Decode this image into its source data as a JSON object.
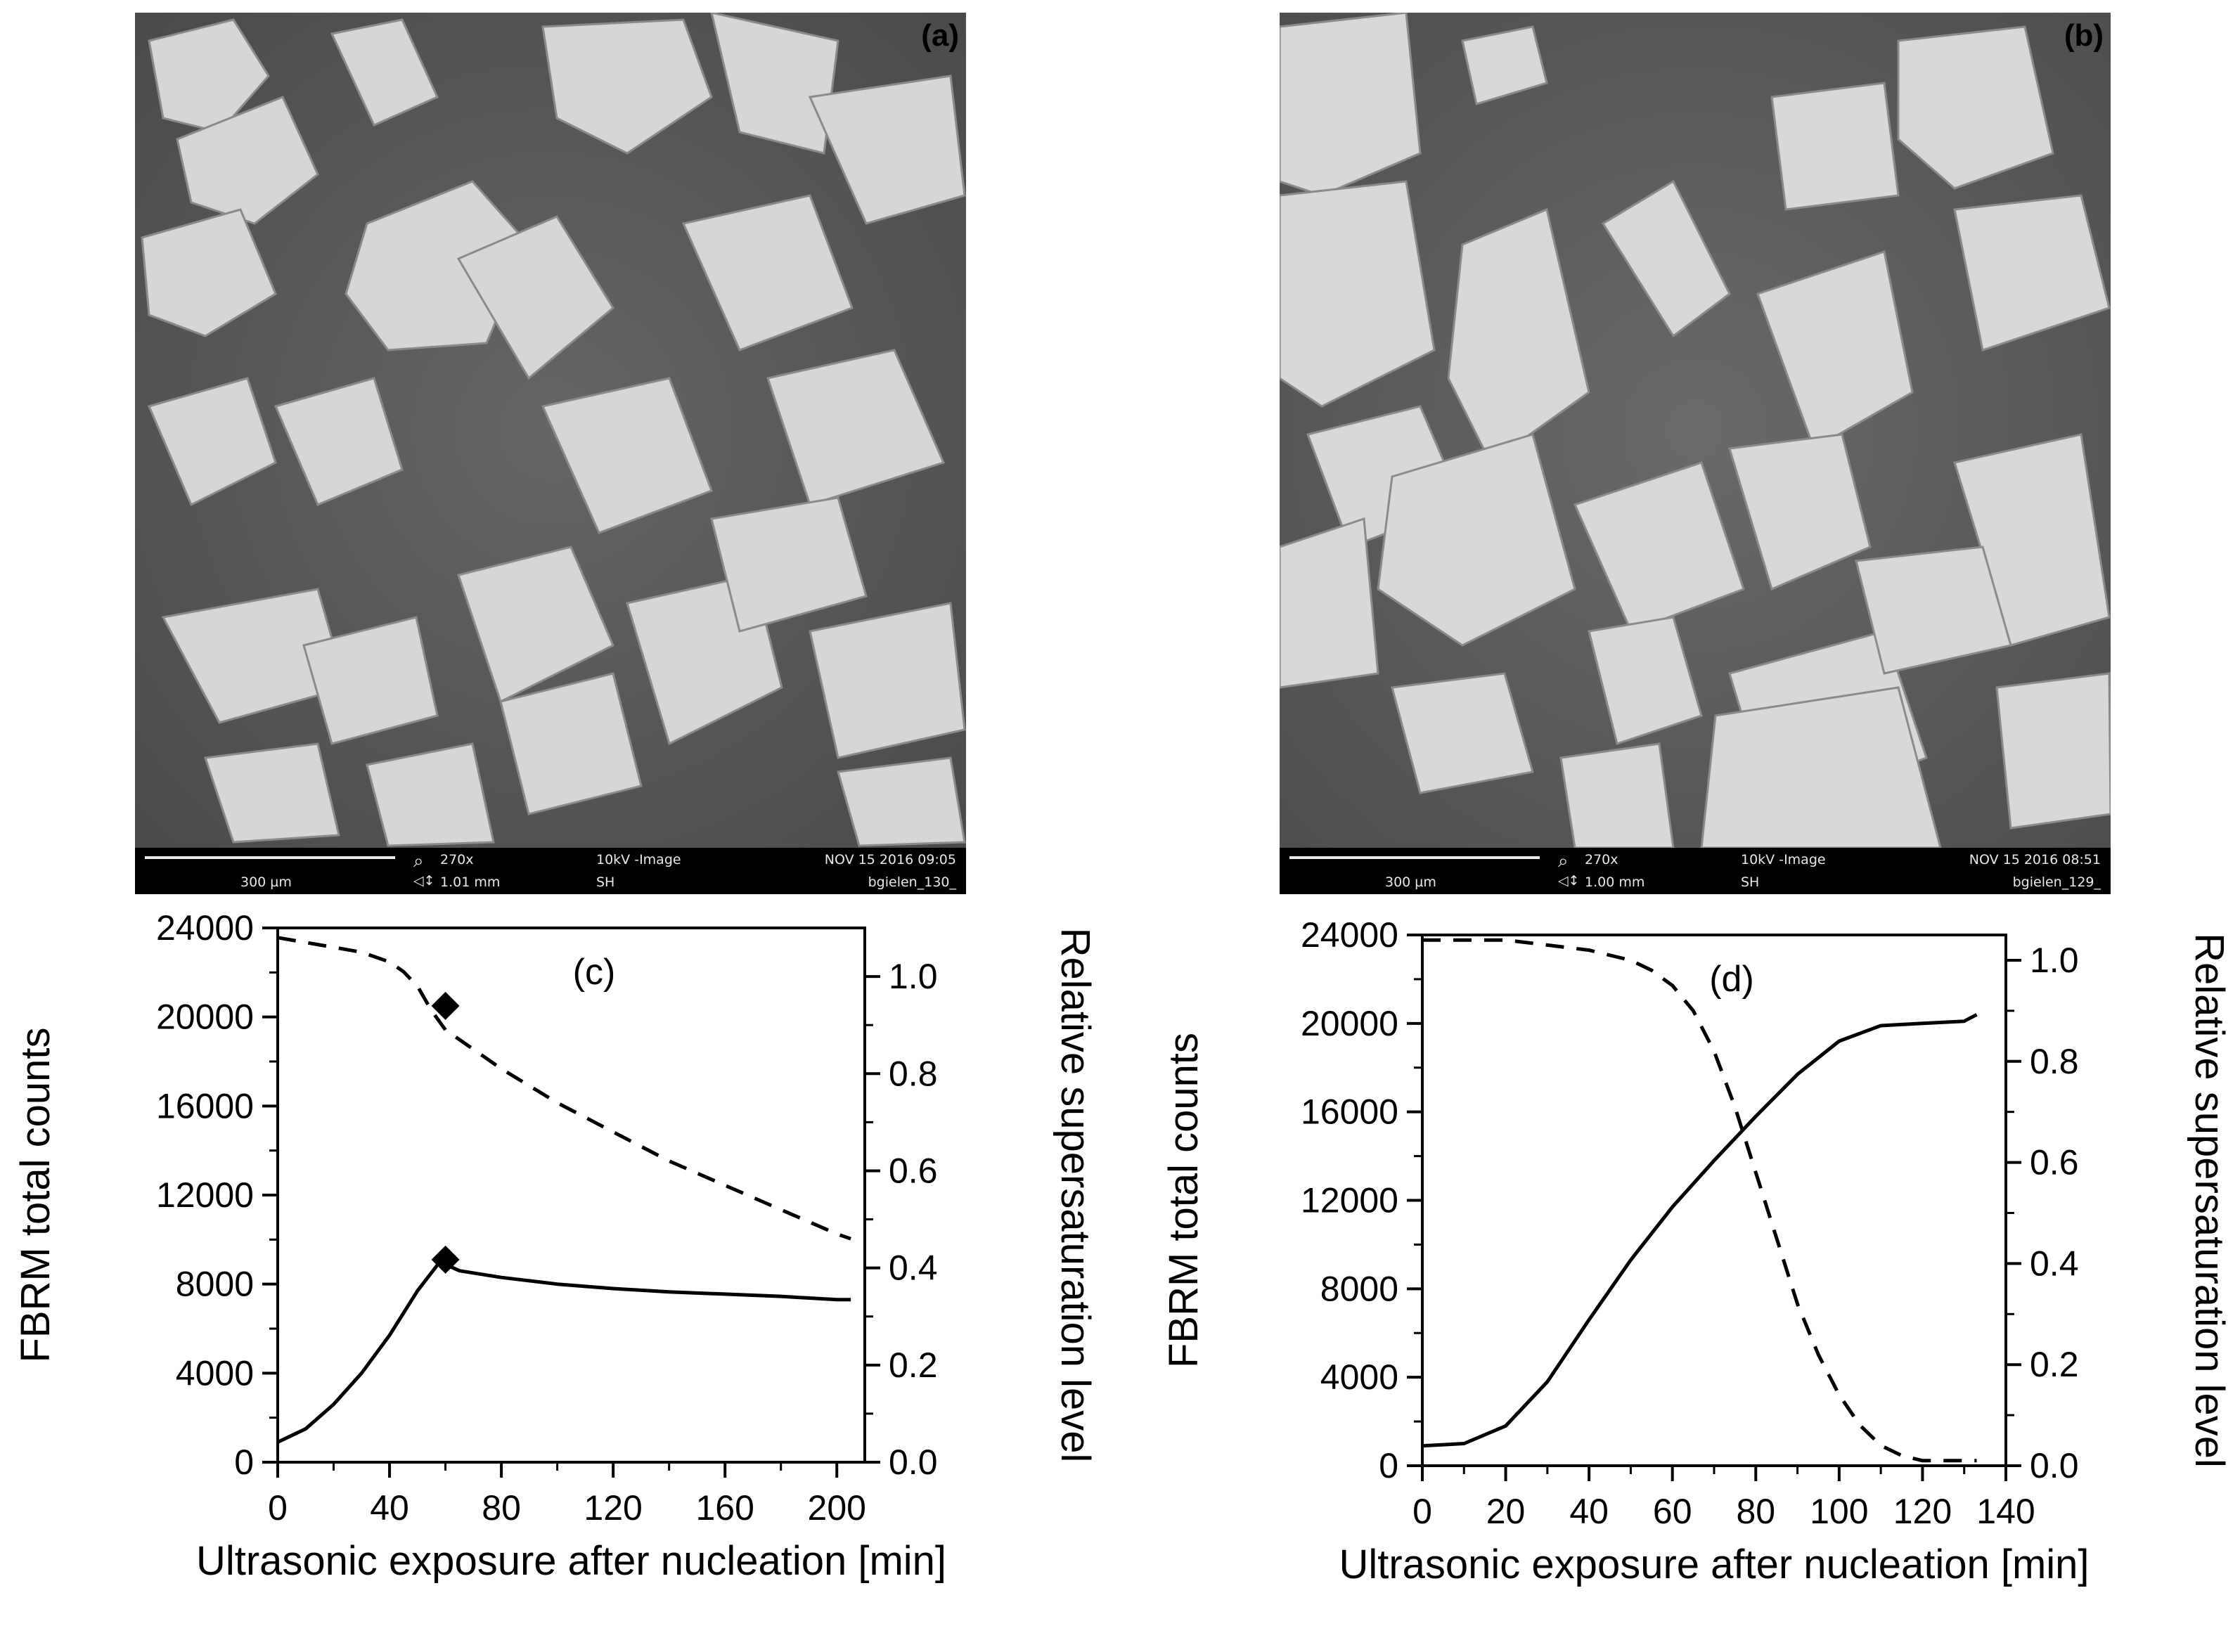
{
  "sem": [
    {
      "label": "(a)",
      "scale_text": "300 µm",
      "magnification": "270x",
      "field_width": "1.01 mm",
      "voltage": "10kV -Image",
      "detector": "SH",
      "datetime": "NOV 15 2016 09:05",
      "filename": "bgielen_130_"
    },
    {
      "label": "(b)",
      "scale_text": "300 µm",
      "magnification": "270x",
      "field_width": "1.00 mm",
      "voltage": "10kV -Image",
      "detector": "SH",
      "datetime": "NOV 15 2016 08:51",
      "filename": "bgielen_129_"
    }
  ],
  "colors": {
    "sem_background": "#5a5a5a",
    "crystal": "#d4d4d4",
    "info_bar": "#000000",
    "line": "#000000"
  },
  "chart_data": [
    {
      "type": "line",
      "panel_label": "(c)",
      "xlabel": "Ultrasonic exposure after nucleation [min]",
      "ylabel": "FBRM total counts",
      "y2label": "Relative supersaturation level",
      "xlim": [
        0,
        210
      ],
      "ylim": [
        0,
        24000
      ],
      "y2lim": [
        0,
        1.1
      ],
      "xticks": [
        "0",
        "40",
        "80",
        "120",
        "160",
        "200"
      ],
      "yticks": [
        "0",
        "4000",
        "8000",
        "12000",
        "16000",
        "20000",
        "24000"
      ],
      "y2ticks": [
        "0.0",
        "0.2",
        "0.4",
        "0.6",
        "0.8",
        "1.0"
      ],
      "series": [
        {
          "style": "solid",
          "axis": "left",
          "x": [
            0,
            10,
            20,
            30,
            40,
            50,
            58,
            65,
            80,
            100,
            120,
            140,
            160,
            180,
            200,
            205
          ],
          "y": [
            900,
            1500,
            2600,
            4000,
            5700,
            7700,
            9000,
            8600,
            8300,
            8000,
            7800,
            7650,
            7550,
            7450,
            7300,
            7300
          ]
        },
        {
          "style": "dashed",
          "axis": "right",
          "x": [
            0,
            10,
            20,
            30,
            40,
            45,
            50,
            55,
            60,
            70,
            80,
            100,
            120,
            140,
            160,
            180,
            200,
            205
          ],
          "y": [
            1.08,
            1.07,
            1.06,
            1.05,
            1.03,
            1.01,
            0.98,
            0.93,
            0.89,
            0.85,
            0.81,
            0.74,
            0.68,
            0.62,
            0.57,
            0.52,
            0.47,
            0.46
          ]
        }
      ],
      "markers": [
        {
          "x": 60,
          "y": 20500,
          "shape": "diamond"
        },
        {
          "x": 60,
          "y": 9100,
          "shape": "diamond"
        }
      ]
    },
    {
      "type": "line",
      "panel_label": "(d)",
      "xlabel": "Ultrasonic exposure after nucleation [min]",
      "ylabel": "FBRM total counts",
      "y2label": "Relative supersaturation level",
      "xlim": [
        0,
        140
      ],
      "ylim": [
        0,
        24000
      ],
      "y2lim": [
        0,
        1.05
      ],
      "xticks": [
        "0",
        "20",
        "40",
        "60",
        "80",
        "100",
        "120",
        "140"
      ],
      "yticks": [
        "0",
        "4000",
        "8000",
        "12000",
        "16000",
        "20000",
        "24000"
      ],
      "y2ticks": [
        "0.0",
        "0.2",
        "0.4",
        "0.6",
        "0.8",
        "1.0"
      ],
      "series": [
        {
          "style": "solid",
          "axis": "left",
          "x": [
            0,
            10,
            20,
            30,
            40,
            50,
            60,
            70,
            80,
            90,
            100,
            110,
            120,
            130,
            133
          ],
          "y": [
            900,
            1000,
            1800,
            3800,
            6600,
            9300,
            11700,
            13800,
            15800,
            17700,
            19200,
            19900,
            20000,
            20100,
            20400
          ]
        },
        {
          "style": "dashed",
          "axis": "right",
          "x": [
            0,
            10,
            20,
            30,
            40,
            50,
            55,
            60,
            65,
            70,
            75,
            80,
            85,
            90,
            95,
            100,
            105,
            110,
            115,
            120,
            125,
            133
          ],
          "y": [
            1.04,
            1.04,
            1.04,
            1.03,
            1.02,
            1.0,
            0.98,
            0.95,
            0.9,
            0.82,
            0.71,
            0.58,
            0.45,
            0.32,
            0.22,
            0.14,
            0.08,
            0.04,
            0.02,
            0.01,
            0.01,
            0.01
          ]
        }
      ],
      "markers": []
    }
  ]
}
